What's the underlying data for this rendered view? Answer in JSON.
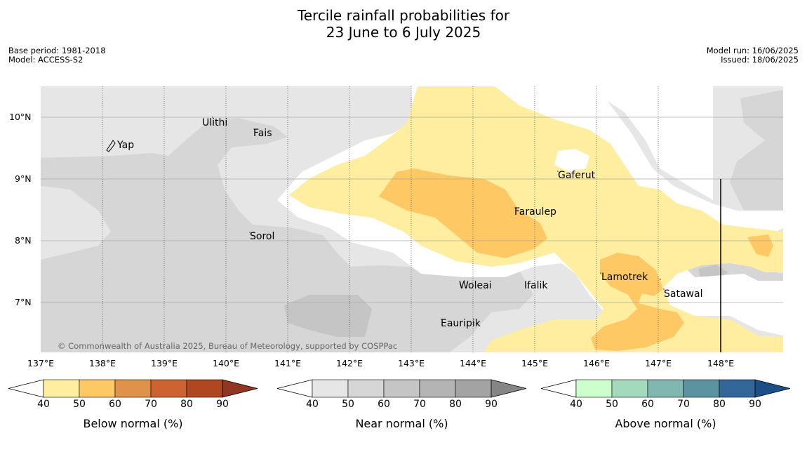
{
  "title_line1": "Tercile rainfall probabilities for",
  "title_line2": "23 June to 6 July 2025",
  "meta_left": {
    "base_period": "Base period: 1981-2018",
    "model": "Model: ACCESS-S2"
  },
  "meta_right": {
    "model_run": "Model run: 16/06/2025",
    "issued": "Issued: 18/06/2025"
  },
  "lat_labels": [
    "10°N",
    "9°N",
    "8°N",
    "7°N"
  ],
  "lon_labels": [
    "137°E",
    "138°E",
    "139°E",
    "140°E",
    "141°E",
    "142°E",
    "143°E",
    "144°E",
    "145°E",
    "146°E",
    "147°E",
    "148°E"
  ],
  "places": {
    "yap": "Yap",
    "ulithi": "Ulithi",
    "fais": "Fais",
    "sorol": "Sorol",
    "gaferut": "Gaferut",
    "faraulep": "Faraulep",
    "woleai": "Woleai",
    "ifalik": "Ifalik",
    "lamotrek": "Lamotrek",
    "satawal": "Satawal",
    "eauripik": "Eauripik"
  },
  "copyright": "© Commonwealth of Australia 2025, Bureau of Meteorology, supported by COSPPac",
  "legends": [
    {
      "title": "Below normal (%)",
      "ticks": [
        "40",
        "50",
        "60",
        "70",
        "80",
        "90"
      ],
      "colors": [
        "#ffeda0",
        "#fec965",
        "#e0914a",
        "#cc6330",
        "#af4821",
        "#913622"
      ]
    },
    {
      "title": "Near normal (%)",
      "ticks": [
        "40",
        "50",
        "60",
        "70",
        "80",
        "90"
      ],
      "colors": [
        "#e6e6e6",
        "#d6d6d6",
        "#c5c5c5",
        "#b4b4b4",
        "#a3a3a3",
        "#858585"
      ]
    },
    {
      "title": "Above normal (%)",
      "ticks": [
        "40",
        "50",
        "60",
        "70",
        "80",
        "90"
      ],
      "colors": [
        "#ccffcc",
        "#a3d9bd",
        "#80b8b1",
        "#5b93a0",
        "#336699",
        "#1b4f85"
      ]
    }
  ]
}
